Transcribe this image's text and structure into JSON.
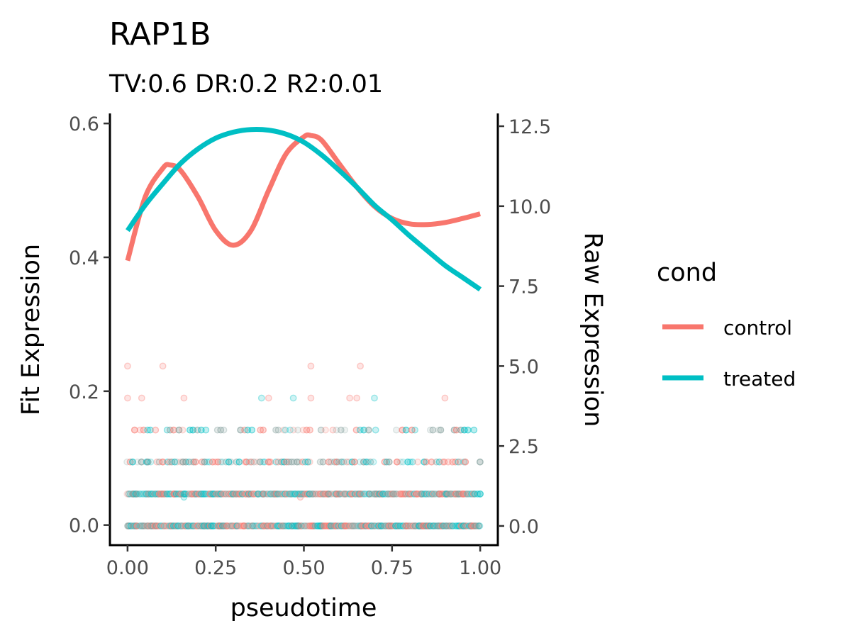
{
  "chart_data": {
    "type": "scatter+line",
    "title": "RAP1B",
    "subtitle": "TV:0.6 DR:0.2 R2:0.01",
    "xlabel": "pseudotime",
    "ylabel_left": "Fit Expression",
    "ylabel_right": "Raw Expression",
    "xlim": [
      -0.05,
      1.05
    ],
    "ylim_left": [
      -0.03,
      0.615
    ],
    "ylim_right": [
      -0.6,
      12.9
    ],
    "x_ticks": [
      "0.00",
      "0.25",
      "0.50",
      "0.75",
      "1.00"
    ],
    "y_left_ticks": [
      "0.0",
      "0.2",
      "0.4",
      "0.6"
    ],
    "y_right_ticks": [
      "0.0",
      "2.5",
      "5.0",
      "7.5",
      "10.0",
      "12.5"
    ],
    "grid": false,
    "legend": {
      "title": "cond",
      "position": "right",
      "entries": [
        "control",
        "treated"
      ]
    },
    "colors": {
      "control": "#F8766D",
      "treated": "#00BFC4",
      "overlap": "#7F9B98"
    },
    "series": [
      {
        "name": "control",
        "fit": {
          "x": [
            0.0,
            0.05,
            0.1,
            0.12,
            0.15,
            0.2,
            0.25,
            0.3,
            0.35,
            0.4,
            0.45,
            0.5,
            0.52,
            0.55,
            0.6,
            0.65,
            0.7,
            0.75,
            0.8,
            0.85,
            0.9,
            0.95,
            1.0
          ],
          "y": [
            0.395,
            0.49,
            0.533,
            0.538,
            0.53,
            0.49,
            0.44,
            0.418,
            0.44,
            0.5,
            0.555,
            0.58,
            0.582,
            0.575,
            0.54,
            0.505,
            0.476,
            0.458,
            0.45,
            0.449,
            0.452,
            0.458,
            0.465
          ]
        }
      },
      {
        "name": "treated",
        "fit": {
          "x": [
            0.0,
            0.05,
            0.1,
            0.15,
            0.2,
            0.25,
            0.3,
            0.35,
            0.4,
            0.45,
            0.5,
            0.55,
            0.6,
            0.65,
            0.7,
            0.75,
            0.8,
            0.85,
            0.9,
            0.95,
            1.0
          ],
          "y": [
            0.44,
            0.478,
            0.51,
            0.54,
            0.562,
            0.578,
            0.587,
            0.591,
            0.59,
            0.584,
            0.572,
            0.553,
            0.53,
            0.505,
            0.478,
            0.456,
            0.432,
            0.41,
            0.388,
            0.37,
            0.352
          ]
        }
      }
    ],
    "raw_points": {
      "note_levels": [
        0,
        1,
        2,
        3,
        4,
        5
      ],
      "rows": [
        {
          "y": 0,
          "density": "full"
        },
        {
          "y": 1,
          "density": "full"
        },
        {
          "y": 2,
          "density": "dense"
        },
        {
          "y": 3,
          "density": "medium"
        },
        {
          "y": 4,
          "x": [
            0.0,
            0.04,
            0.16,
            0.38,
            0.4,
            0.47,
            0.52,
            0.63,
            0.65,
            0.7,
            0.9
          ]
        },
        {
          "y": 5,
          "x": [
            0.0,
            0.1,
            0.52,
            0.66
          ]
        },
        {
          "y": 0.9,
          "x": [
            0.16,
            0.49
          ]
        }
      ]
    }
  }
}
